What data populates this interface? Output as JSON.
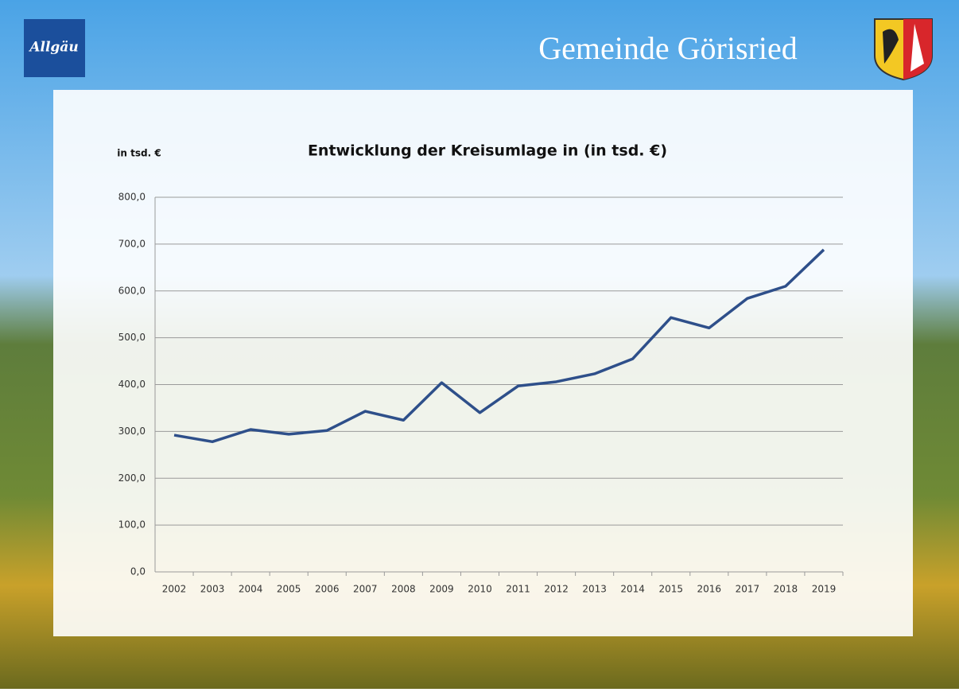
{
  "header": {
    "logo": "Allgäu",
    "title": "Gemeinde Görisried"
  },
  "chart_data": {
    "type": "line",
    "title": "Entwicklung der Kreisumlage in (in tsd. €)",
    "y_label": "in tsd. €",
    "categories": [
      "2002",
      "2003",
      "2004",
      "2005",
      "2006",
      "2007",
      "2008",
      "2009",
      "2010",
      "2011",
      "2012",
      "2013",
      "2014",
      "2015",
      "2016",
      "2017",
      "2018",
      "2019"
    ],
    "series": [
      {
        "color": "#2e4f8a",
        "values": [
          292,
          278,
          304,
          294,
          302,
          343,
          324,
          404,
          340,
          397,
          406,
          423,
          455,
          543,
          521,
          584,
          610,
          688
        ]
      }
    ],
    "ylim": [
      0,
      800
    ],
    "yticks": [
      {
        "value": 0,
        "label": "0,0"
      },
      {
        "value": 100,
        "label": "100,0"
      },
      {
        "value": 200,
        "label": "200,0"
      },
      {
        "value": 300,
        "label": "300,0"
      },
      {
        "value": 400,
        "label": "400,0"
      },
      {
        "value": 500,
        "label": "500,0"
      },
      {
        "value": 600,
        "label": "600,0"
      },
      {
        "value": 700,
        "label": "700,0"
      },
      {
        "value": 800,
        "label": "800,0"
      }
    ],
    "grid": true
  }
}
